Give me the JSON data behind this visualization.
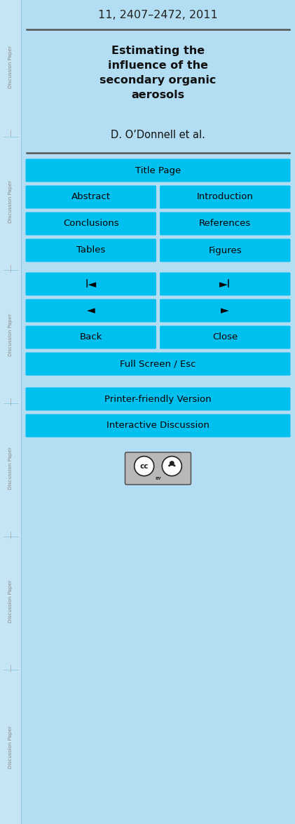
{
  "bg_color": "#b3ddf2",
  "sidebar_color": "#c5e5f5",
  "button_color": "#00c0f0",
  "button_text_color": "#000000",
  "header_line": "11, 2407–2472, 2011",
  "title_lines": [
    "Estimating the",
    "influence of the",
    "secondary organic",
    "aerosols"
  ],
  "author": "D. O’Donnell et al.",
  "buttons_double": [
    [
      "Abstract",
      "Introduction"
    ],
    [
      "Conclusions",
      "References"
    ],
    [
      "Tables",
      "Figures"
    ],
    [
      "I◄",
      "►I"
    ],
    [
      "◄",
      "►"
    ],
    [
      "Back",
      "Close"
    ]
  ],
  "buttons_single_top": "Title Page",
  "buttons_single_bottom": [
    "Full Screen / Esc",
    "Printer-friendly Version",
    "Interactive Discussion"
  ],
  "fig_width": 4.21,
  "fig_height": 11.75,
  "dpi": 100
}
